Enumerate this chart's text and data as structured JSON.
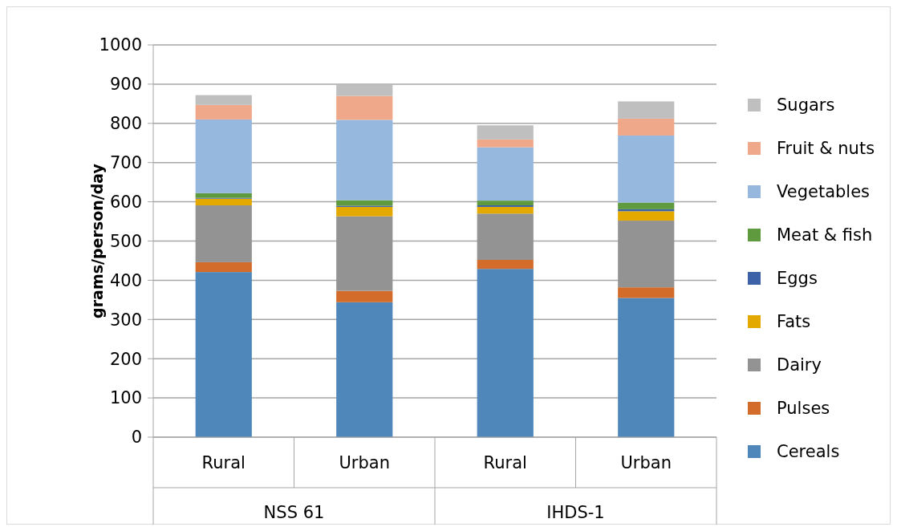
{
  "chart_data": {
    "type": "bar",
    "stacked": true,
    "ylabel": "grams/person/day",
    "categories": [
      "Rural",
      "Urban",
      "Rural",
      "Urban"
    ],
    "annotations": [
      "NSS 61",
      "IHDS-1"
    ],
    "ylim": [
      0,
      1000
    ],
    "yticks": [
      0,
      100,
      200,
      300,
      400,
      500,
      600,
      700,
      800,
      900,
      1000
    ],
    "grid": "y",
    "legend": "right",
    "series": [
      {
        "name": "Cereals",
        "color": "#4f87bb",
        "values": [
          421,
          344,
          429,
          355
        ]
      },
      {
        "name": "Pulses",
        "color": "#d36c2a",
        "values": [
          25,
          29,
          23,
          27
        ]
      },
      {
        "name": "Dairy",
        "color": "#939393",
        "values": [
          145,
          190,
          118,
          170
        ]
      },
      {
        "name": "Fats",
        "color": "#e3a900",
        "values": [
          17,
          24,
          17,
          24
        ]
      },
      {
        "name": "Eggs",
        "color": "#3d62a8",
        "values": [
          2,
          3,
          4,
          5
        ]
      },
      {
        "name": "Meat & fish",
        "color": "#5f9a3f",
        "values": [
          12,
          14,
          12,
          17
        ]
      },
      {
        "name": "Vegetables",
        "color": "#97b8de",
        "values": [
          188,
          205,
          136,
          171
        ]
      },
      {
        "name": "Fruit & nuts",
        "color": "#f0a88a",
        "values": [
          37,
          61,
          20,
          43
        ]
      },
      {
        "name": "Sugars",
        "color": "#bfbfbf",
        "values": [
          25,
          28,
          36,
          44
        ]
      }
    ]
  }
}
